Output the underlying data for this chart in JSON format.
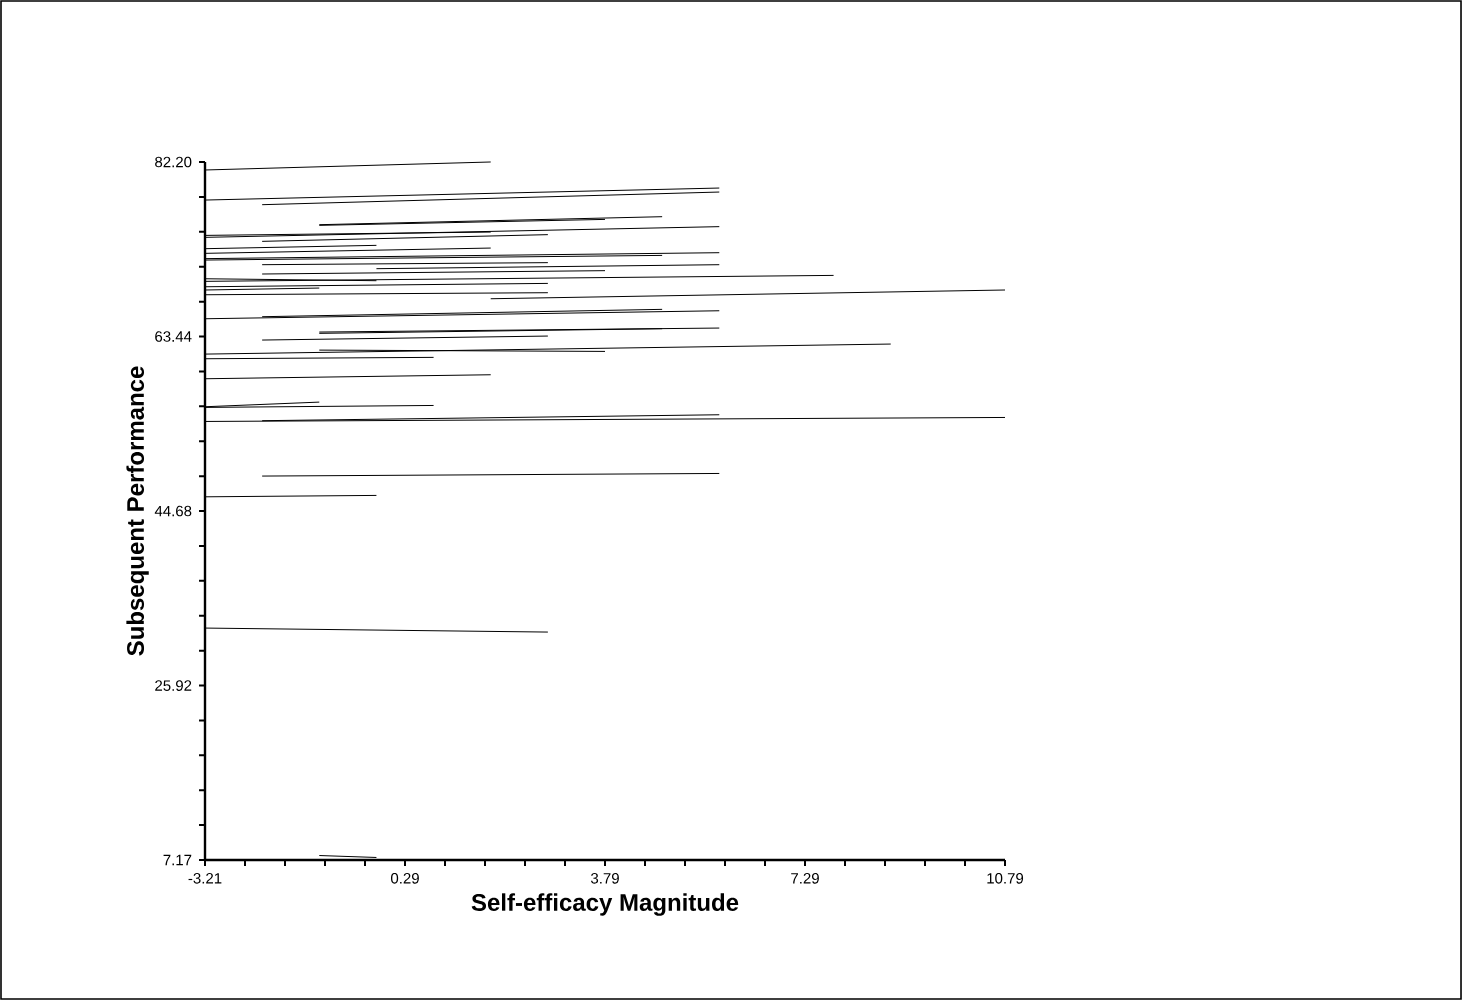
{
  "chart_data": {
    "type": "line",
    "xlabel": "Self-efficacy Magnitude",
    "ylabel": "Subsequent Performance",
    "xlim": [
      -3.21,
      10.79
    ],
    "ylim": [
      7.17,
      82.2
    ],
    "xticks": [
      -3.21,
      {
        "value": -2.51,
        "label": null
      },
      {
        "value": -1.81,
        "label": null
      },
      {
        "value": -1.11,
        "label": null
      },
      {
        "value": -0.41,
        "label": null
      },
      0.29,
      {
        "value": 0.99,
        "label": null
      },
      {
        "value": 1.69,
        "label": null
      },
      {
        "value": 2.39,
        "label": null
      },
      {
        "value": 3.09,
        "label": null
      },
      3.79,
      {
        "value": 4.49,
        "label": null
      },
      {
        "value": 5.19,
        "label": null
      },
      {
        "value": 5.89,
        "label": null
      },
      {
        "value": 6.59,
        "label": null
      },
      7.29,
      {
        "value": 7.99,
        "label": null
      },
      {
        "value": 8.69,
        "label": null
      },
      {
        "value": 9.39,
        "label": null
      },
      {
        "value": 10.09,
        "label": null
      },
      10.79
    ],
    "yticks": [
      7.17,
      {
        "value": 10.92,
        "label": null
      },
      {
        "value": 14.67,
        "label": null
      },
      {
        "value": 18.42,
        "label": null
      },
      {
        "value": 22.17,
        "label": null
      },
      25.92,
      {
        "value": 29.67,
        "label": null
      },
      {
        "value": 33.43,
        "label": null
      },
      {
        "value": 37.18,
        "label": null
      },
      {
        "value": 40.93,
        "label": null
      },
      44.68,
      {
        "value": 48.43,
        "label": null
      },
      {
        "value": 52.19,
        "label": null
      },
      {
        "value": 55.94,
        "label": null
      },
      {
        "value": 59.69,
        "label": null
      },
      63.44,
      {
        "value": 67.19,
        "label": null
      },
      {
        "value": 70.95,
        "label": null
      },
      {
        "value": 74.7,
        "label": null
      },
      {
        "value": 78.45,
        "label": null
      },
      {
        "value": 82.2,
        "label": "82.20"
      }
    ],
    "grid": false,
    "marker": "none",
    "line_style": "solid",
    "series": [
      {
        "color": "#000000",
        "x": [
          -3.21,
          1.79
        ],
        "values": [
          81.34,
          82.2
        ]
      },
      {
        "color": "#000000",
        "x": [
          -3.21,
          5.79
        ],
        "values": [
          78.11,
          79.4
        ]
      },
      {
        "color": "#000000",
        "x": [
          -2.21,
          5.79
        ],
        "values": [
          77.61,
          78.97
        ]
      },
      {
        "color": "#000000",
        "x": [
          -1.21,
          4.79
        ],
        "values": [
          75.46,
          76.32
        ]
      },
      {
        "color": "#000000",
        "x": [
          -1.21,
          3.79
        ],
        "values": [
          75.39,
          76.03
        ]
      },
      {
        "color": "#000000",
        "x": [
          -3.21,
          5.79
        ],
        "values": [
          74.1,
          75.25
        ]
      },
      {
        "color": "#000000",
        "x": [
          -2.21,
          2.79
        ],
        "values": [
          73.67,
          74.39
        ]
      },
      {
        "color": "#000000",
        "x": [
          -3.21,
          1.79
        ],
        "values": [
          74.31,
          74.67
        ]
      },
      {
        "color": "#000000",
        "x": [
          -3.21,
          -0.21
        ],
        "values": [
          72.88,
          73.24
        ]
      },
      {
        "color": "#000000",
        "x": [
          -3.21,
          1.79
        ],
        "values": [
          72.38,
          72.95
        ]
      },
      {
        "color": "#000000",
        "x": [
          -3.21,
          5.79
        ],
        "values": [
          71.81,
          72.45
        ]
      },
      {
        "color": "#000000",
        "x": [
          -3.21,
          4.79
        ],
        "values": [
          71.66,
          72.16
        ]
      },
      {
        "color": "#000000",
        "x": [
          -2.21,
          2.79
        ],
        "values": [
          71.16,
          71.38
        ]
      },
      {
        "color": "#000000",
        "x": [
          -0.21,
          5.79
        ],
        "values": [
          70.73,
          71.16
        ]
      },
      {
        "color": "#000000",
        "x": [
          -2.21,
          3.79
        ],
        "values": [
          70.16,
          70.52
        ]
      },
      {
        "color": "#000000",
        "x": [
          -3.21,
          7.79
        ],
        "values": [
          69.37,
          70.01
        ]
      },
      {
        "color": "#000000",
        "x": [
          -3.21,
          -0.21
        ],
        "values": [
          69.65,
          69.44
        ]
      },
      {
        "color": "#000000",
        "x": [
          -3.21,
          2.79
        ],
        "values": [
          68.79,
          69.15
        ]
      },
      {
        "color": "#000000",
        "x": [
          -3.21,
          -1.21
        ],
        "values": [
          68.44,
          68.65
        ]
      },
      {
        "color": "#000000",
        "x": [
          -3.21,
          2.79
        ],
        "values": [
          67.93,
          68.15
        ]
      },
      {
        "color": "#000000",
        "x": [
          1.79,
          10.79
        ],
        "values": [
          67.5,
          68.44
        ]
      },
      {
        "color": "#000000",
        "x": [
          -2.21,
          4.79
        ],
        "values": [
          65.57,
          66.36
        ]
      },
      {
        "color": "#000000",
        "x": [
          -3.21,
          5.79
        ],
        "values": [
          65.35,
          66.21
        ]
      },
      {
        "color": "#000000",
        "x": [
          -1.21,
          5.79
        ],
        "values": [
          63.92,
          64.35
        ]
      },
      {
        "color": "#000000",
        "x": [
          -2.21,
          2.79
        ],
        "values": [
          63.06,
          63.49
        ]
      },
      {
        "color": "#000000",
        "x": [
          -1.21,
          4.79
        ],
        "values": [
          63.78,
          64.28
        ]
      },
      {
        "color": "#000000",
        "x": [
          -1.21,
          3.79
        ],
        "values": [
          61.98,
          61.84
        ]
      },
      {
        "color": "#000000",
        "x": [
          -3.21,
          8.79
        ],
        "values": [
          61.55,
          62.63
        ]
      },
      {
        "color": "#000000",
        "x": [
          -3.21,
          0.79
        ],
        "values": [
          61.05,
          61.2
        ]
      },
      {
        "color": "#000000",
        "x": [
          -3.21,
          1.79
        ],
        "values": [
          58.9,
          59.33
        ]
      },
      {
        "color": "#000000",
        "x": [
          -3.21,
          0.79
        ],
        "values": [
          55.82,
          56.03
        ]
      },
      {
        "color": "#000000",
        "x": [
          -3.21,
          -1.21
        ],
        "values": [
          55.89,
          56.39
        ]
      },
      {
        "color": "#000000",
        "x": [
          -2.21,
          5.79
        ],
        "values": [
          54.39,
          55.03
        ]
      },
      {
        "color": "#000000",
        "x": [
          -3.21,
          10.79
        ],
        "values": [
          54.31,
          54.74
        ]
      },
      {
        "color": "#000000",
        "x": [
          -2.21,
          5.79
        ],
        "values": [
          48.44,
          48.72
        ]
      },
      {
        "color": "#000000",
        "x": [
          -3.21,
          -0.21
        ],
        "values": [
          46.21,
          46.36
        ]
      },
      {
        "color": "#000000",
        "x": [
          -3.21,
          2.79
        ],
        "values": [
          32.1,
          31.67
        ]
      },
      {
        "color": "#000000",
        "x": [
          -1.21,
          -0.21
        ],
        "values": [
          7.65,
          7.44
        ]
      }
    ]
  }
}
